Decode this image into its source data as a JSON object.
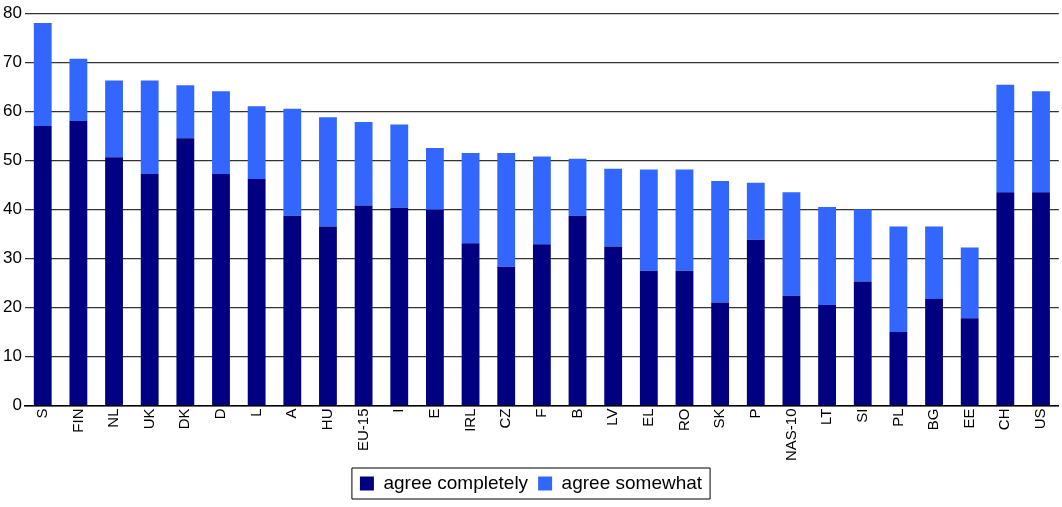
{
  "chart_data": {
    "type": "bar",
    "stacked": true,
    "categories": [
      "S",
      "FIN",
      "NL",
      "UK",
      "DK",
      "D",
      "L",
      "A",
      "HU",
      "EU-15",
      "I",
      "E",
      "IRL",
      "CZ",
      "F",
      "B",
      "LV",
      "EL",
      "RO",
      "SK",
      "P",
      "NAS-10",
      "LT",
      "SI",
      "PL",
      "BG",
      "EE",
      "CH",
      "US"
    ],
    "series": [
      {
        "name": "agree completely",
        "color": "#000080",
        "values": [
          57,
          58,
          50.6,
          47.2,
          54.5,
          47.2,
          46.2,
          38.7,
          36.5,
          40.8,
          40.3,
          39.9,
          33.1,
          28.3,
          32.9,
          38.7,
          32.4,
          27.5,
          27.5,
          21,
          33.8,
          22.4,
          20.5,
          25.3,
          15,
          21.7,
          17.8,
          43.5,
          43.5
        ]
      },
      {
        "name": "agree somewhat",
        "color": "#3366ff",
        "values": [
          21,
          12.7,
          15.7,
          19.1,
          10.8,
          16.9,
          14.8,
          21.8,
          22.3,
          17,
          17,
          12.6,
          18.4,
          23.2,
          17.9,
          11.6,
          15.9,
          20.6,
          20.6,
          24.8,
          11.6,
          21.1,
          20,
          14.7,
          21.5,
          14.8,
          14.4,
          21.9,
          20.6
        ]
      }
    ],
    "ylim": [
      0,
      80
    ],
    "yticks": [
      0,
      10,
      20,
      30,
      40,
      50,
      60,
      70,
      80
    ],
    "grid": "y",
    "legend": "bottom"
  }
}
